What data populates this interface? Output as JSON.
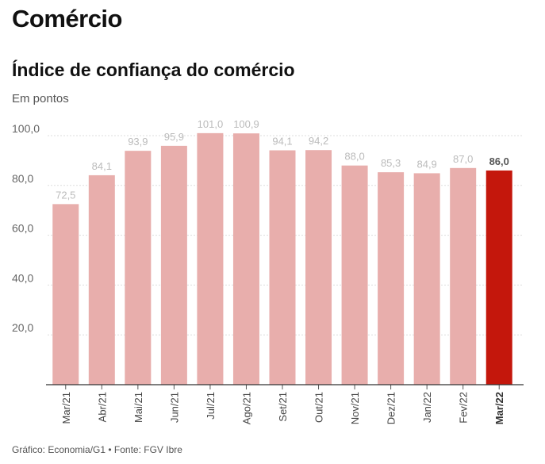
{
  "header": {
    "section_title": "Comércio",
    "chart_title": "Índice de confiança do comércio",
    "unit_label": "Em pontos"
  },
  "footer": {
    "source": "Gráfico: Economia/G1 • Fonte: FGV Ibre"
  },
  "colors": {
    "bar": "#e8aeac",
    "highlight_bar": "#c4170c",
    "label": "#bbbbbb",
    "highlight_label": "#555555",
    "grid": "#dddddd",
    "axis_text": "#666666"
  },
  "chart_data": {
    "type": "bar",
    "title": "Índice de confiança do comércio",
    "ylabel": "Em pontos",
    "categories": [
      "Mar/21",
      "Abr/21",
      "Mai/21",
      "Jun/21",
      "Jul/21",
      "Ago/21",
      "Set/21",
      "Out/21",
      "Nov/21",
      "Dez/21",
      "Jan/22",
      "Fev/22",
      "Mar/22"
    ],
    "values": [
      72.5,
      84.1,
      93.9,
      95.9,
      101.0,
      100.9,
      94.1,
      94.2,
      88.0,
      85.3,
      84.9,
      87.0,
      86.0
    ],
    "value_labels": [
      "72,5",
      "84,1",
      "93,9",
      "95,9",
      "101,0",
      "100,9",
      "94,1",
      "94,2",
      "88,0",
      "85,3",
      "84,9",
      "87,0",
      "86,0"
    ],
    "highlight_index": 12,
    "ylim": [
      0,
      100
    ],
    "yticks": [
      20,
      40,
      60,
      80,
      100
    ],
    "ytick_labels": [
      "20,0",
      "40,0",
      "60,0",
      "80,0",
      "100,0"
    ],
    "grid": true
  }
}
